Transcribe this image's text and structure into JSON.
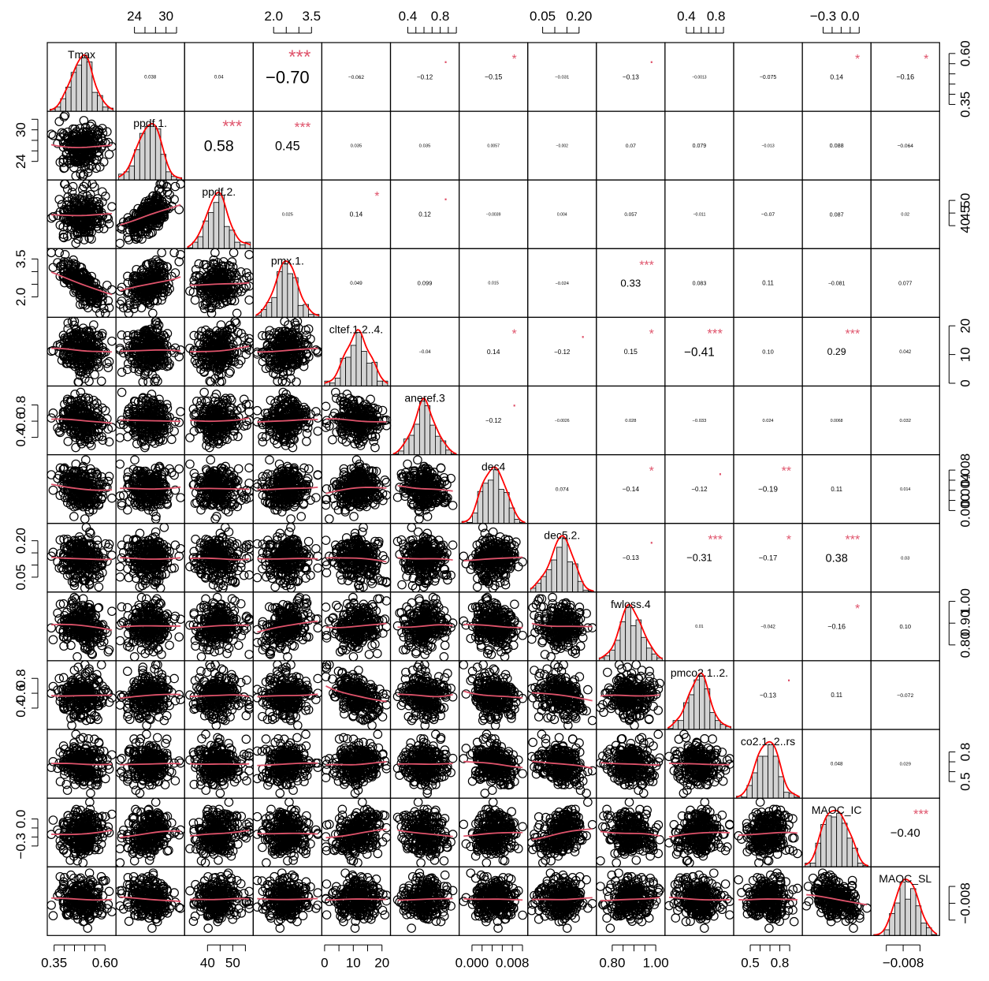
{
  "chart_data": {
    "type": "scatter-matrix",
    "title": "",
    "variables": [
      "Tmax",
      "ppdf.1.",
      "ppdf.2.",
      "pmx.1.",
      "cltef.1.2..4.",
      "aneref.3",
      "dec4",
      "dec5.2.",
      "fwloss.4",
      "pmco2.1..2.",
      "co2.1..2..rs",
      "MAOC_IC",
      "MAOC_SL"
    ],
    "diagonal_labels": [
      "Tmax",
      "ppdf.1.",
      "ppdf.2.",
      "pmx.1.",
      "cltef.1.2..4.",
      "aneref.3",
      "dec4",
      "dec5.2.",
      "fwloss.4",
      "pmco2.1..2.",
      "co2.1..2..rs",
      "MAOC_IC",
      "MAOC_SL"
    ],
    "ranges": [
      [
        0.33,
        0.64
      ],
      [
        21,
        33
      ],
      [
        32,
        57
      ],
      [
        1.3,
        3.8
      ],
      [
        0,
        22
      ],
      [
        0.22,
        1.0
      ],
      [
        -0.002,
        0.0105
      ],
      [
        0.0,
        0.26
      ],
      [
        0.74,
        1.03
      ],
      [
        0.15,
        1.0
      ],
      [
        0.36,
        1.0
      ],
      [
        -0.5,
        0.2
      ],
      [
        -0.0115,
        -0.004
      ]
    ],
    "top_axis": [
      {
        "col": 1,
        "ticks": [
          24,
          26,
          28,
          30,
          32
        ],
        "labels": [
          "24",
          "",
          "",
          "30",
          ""
        ]
      },
      {
        "col": 3,
        "ticks": [
          2.0,
          2.5,
          3.0,
          3.5
        ],
        "labels": [
          "2.0",
          "",
          "",
          "3.5"
        ]
      },
      {
        "col": 5,
        "ticks": [
          0.4,
          0.5,
          0.6,
          0.7,
          0.8,
          0.9,
          1.0
        ],
        "labels": [
          "0.4",
          "",
          "",
          "",
          "0.8",
          "",
          ""
        ]
      },
      {
        "col": 7,
        "ticks": [
          0.05,
          0.1,
          0.15,
          0.2
        ],
        "labels": [
          "0.05",
          "",
          "",
          "0.20"
        ]
      },
      {
        "col": 9,
        "ticks": [
          0.4,
          0.5,
          0.6,
          0.7,
          0.8,
          0.9
        ],
        "labels": [
          "0.4",
          "",
          "",
          "",
          "0.8",
          ""
        ]
      },
      {
        "col": 11,
        "ticks": [
          -0.3,
          -0.2,
          -0.1,
          0.0,
          0.1
        ],
        "labels": [
          "−0.3",
          "",
          "",
          "0.0",
          ""
        ]
      }
    ],
    "bottom_axis": [
      {
        "col": 0,
        "ticks": [
          0.35,
          0.4,
          0.45,
          0.5,
          0.55,
          0.6
        ],
        "labels": [
          "0.35",
          "",
          "",
          "",
          "",
          "0.60"
        ]
      },
      {
        "col": 2,
        "ticks": [
          40,
          45,
          50,
          55
        ],
        "labels": [
          "40",
          "",
          "50",
          ""
        ]
      },
      {
        "col": 4,
        "ticks": [
          0,
          5,
          10,
          15,
          20
        ],
        "labels": [
          "0",
          "",
          "10",
          "",
          "20"
        ]
      },
      {
        "col": 6,
        "ticks": [
          0.0,
          0.002,
          0.004,
          0.006,
          0.008,
          0.01
        ],
        "labels": [
          "0.000",
          "",
          "",
          "",
          "0.008",
          ""
        ]
      },
      {
        "col": 8,
        "ticks": [
          0.8,
          0.85,
          0.9,
          0.95,
          1.0
        ],
        "labels": [
          "0.80",
          "",
          "",
          "",
          "1.00"
        ]
      },
      {
        "col": 10,
        "ticks": [
          0.5,
          0.6,
          0.7,
          0.8,
          0.9
        ],
        "labels": [
          "0.5",
          "",
          "",
          "0.8",
          ""
        ]
      },
      {
        "col": 12,
        "ticks": [
          -0.01,
          -0.008,
          -0.006
        ],
        "labels": [
          "",
          "−0.008",
          ""
        ]
      }
    ],
    "left_axis": [
      {
        "row": 1,
        "ticks": [
          24,
          26,
          28,
          30,
          32
        ],
        "labels": [
          "24",
          "",
          "",
          "30",
          ""
        ]
      },
      {
        "row": 3,
        "ticks": [
          2.0,
          2.5,
          3.0,
          3.5
        ],
        "labels": [
          "2.0",
          "",
          "",
          "3.5"
        ]
      },
      {
        "row": 5,
        "ticks": [
          0.4,
          0.6,
          0.8
        ],
        "labels": [
          "0.4",
          "0.6",
          "0.8"
        ]
      },
      {
        "row": 7,
        "ticks": [
          0.05,
          0.1,
          0.15,
          0.2
        ],
        "labels": [
          "0.05",
          "",
          "",
          "0.20"
        ]
      },
      {
        "row": 9,
        "ticks": [
          0.4,
          0.6,
          0.8
        ],
        "labels": [
          "0.4",
          "0.6",
          "0.8"
        ]
      },
      {
        "row": 11,
        "ticks": [
          -0.3,
          -0.2,
          -0.1,
          0.0
        ],
        "labels": [
          "−0.3",
          "",
          "",
          "0.0"
        ]
      }
    ],
    "right_axis": [
      {
        "row": 0,
        "ticks": [
          0.35,
          0.4,
          0.45,
          0.5,
          0.55,
          0.6
        ],
        "labels": [
          "0.35",
          "",
          "",
          "",
          "",
          "0.60"
        ]
      },
      {
        "row": 2,
        "ticks": [
          40,
          45,
          50
        ],
        "labels": [
          "40",
          "45",
          "50"
        ]
      },
      {
        "row": 4,
        "ticks": [
          0,
          10,
          20
        ],
        "labels": [
          "0",
          "10",
          "20"
        ]
      },
      {
        "row": 6,
        "ticks": [
          0.0,
          0.002,
          0.004,
          0.006,
          0.008
        ],
        "labels": [
          "0.000",
          "",
          "0.004",
          "",
          "0.008"
        ]
      },
      {
        "row": 8,
        "ticks": [
          0.8,
          0.9,
          1.0
        ],
        "labels": [
          "0.80",
          "0.90",
          "1.00"
        ]
      },
      {
        "row": 10,
        "ticks": [
          0.5,
          0.6,
          0.7,
          0.8
        ],
        "labels": [
          "0.5",
          "",
          "",
          "0.8"
        ]
      },
      {
        "row": 12,
        "ticks": [
          -0.01,
          -0.008,
          -0.006
        ],
        "labels": [
          "",
          "−0.008",
          ""
        ]
      }
    ],
    "correlations": [
      {
        "i": 0,
        "j": 1,
        "r": "0.038",
        "stars": ""
      },
      {
        "i": 0,
        "j": 2,
        "r": "0.04",
        "stars": ""
      },
      {
        "i": 0,
        "j": 3,
        "r": "−0.70",
        "stars": "***"
      },
      {
        "i": 0,
        "j": 4,
        "r": "−0.062",
        "stars": ""
      },
      {
        "i": 0,
        "j": 5,
        "r": "−0.12",
        "stars": "."
      },
      {
        "i": 0,
        "j": 6,
        "r": "−0.15",
        "stars": "*"
      },
      {
        "i": 0,
        "j": 7,
        "r": "−0.031",
        "stars": ""
      },
      {
        "i": 0,
        "j": 8,
        "r": "−0.13",
        "stars": "."
      },
      {
        "i": 0,
        "j": 9,
        "r": "−0.0013",
        "stars": ""
      },
      {
        "i": 0,
        "j": 10,
        "r": "−0.075",
        "stars": ""
      },
      {
        "i": 0,
        "j": 11,
        "r": "0.14",
        "stars": "*"
      },
      {
        "i": 0,
        "j": 12,
        "r": "−0.16",
        "stars": "*"
      },
      {
        "i": 1,
        "j": 2,
        "r": "0.58",
        "stars": "***"
      },
      {
        "i": 1,
        "j": 3,
        "r": "0.45",
        "stars": "***"
      },
      {
        "i": 1,
        "j": 4,
        "r": "0.035",
        "stars": ""
      },
      {
        "i": 1,
        "j": 5,
        "r": "0.035",
        "stars": ""
      },
      {
        "i": 1,
        "j": 6,
        "r": "0.0057",
        "stars": ""
      },
      {
        "i": 1,
        "j": 7,
        "r": "−0.002",
        "stars": ""
      },
      {
        "i": 1,
        "j": 8,
        "r": "0.07",
        "stars": ""
      },
      {
        "i": 1,
        "j": 9,
        "r": "0.079",
        "stars": ""
      },
      {
        "i": 1,
        "j": 10,
        "r": "−0.013",
        "stars": ""
      },
      {
        "i": 1,
        "j": 11,
        "r": "0.088",
        "stars": ""
      },
      {
        "i": 1,
        "j": 12,
        "r": "−0.064",
        "stars": ""
      },
      {
        "i": 2,
        "j": 3,
        "r": "0.025",
        "stars": ""
      },
      {
        "i": 2,
        "j": 4,
        "r": "0.14",
        "stars": "*"
      },
      {
        "i": 2,
        "j": 5,
        "r": "0.12",
        "stars": "."
      },
      {
        "i": 2,
        "j": 6,
        "r": "−0.0039",
        "stars": ""
      },
      {
        "i": 2,
        "j": 7,
        "r": "0.004",
        "stars": ""
      },
      {
        "i": 2,
        "j": 8,
        "r": "0.057",
        "stars": ""
      },
      {
        "i": 2,
        "j": 9,
        "r": "−0.011",
        "stars": ""
      },
      {
        "i": 2,
        "j": 10,
        "r": "−0.07",
        "stars": ""
      },
      {
        "i": 2,
        "j": 11,
        "r": "0.087",
        "stars": ""
      },
      {
        "i": 2,
        "j": 12,
        "r": "0.02",
        "stars": ""
      },
      {
        "i": 3,
        "j": 4,
        "r": "0.049",
        "stars": ""
      },
      {
        "i": 3,
        "j": 5,
        "r": "0.099",
        "stars": ""
      },
      {
        "i": 3,
        "j": 6,
        "r": "0.015",
        "stars": ""
      },
      {
        "i": 3,
        "j": 7,
        "r": "−0.024",
        "stars": ""
      },
      {
        "i": 3,
        "j": 8,
        "r": "0.33",
        "stars": "***"
      },
      {
        "i": 3,
        "j": 9,
        "r": "0.083",
        "stars": ""
      },
      {
        "i": 3,
        "j": 10,
        "r": "0.11",
        "stars": ""
      },
      {
        "i": 3,
        "j": 11,
        "r": "−0.081",
        "stars": ""
      },
      {
        "i": 3,
        "j": 12,
        "r": "0.077",
        "stars": ""
      },
      {
        "i": 4,
        "j": 5,
        "r": "−0.04",
        "stars": ""
      },
      {
        "i": 4,
        "j": 6,
        "r": "0.14",
        "stars": "*"
      },
      {
        "i": 4,
        "j": 7,
        "r": "−0.12",
        "stars": "."
      },
      {
        "i": 4,
        "j": 8,
        "r": "0.15",
        "stars": "*"
      },
      {
        "i": 4,
        "j": 9,
        "r": "−0.41",
        "stars": "***"
      },
      {
        "i": 4,
        "j": 10,
        "r": "0.10",
        "stars": ""
      },
      {
        "i": 4,
        "j": 11,
        "r": "0.29",
        "stars": "***"
      },
      {
        "i": 4,
        "j": 12,
        "r": "0.042",
        "stars": ""
      },
      {
        "i": 5,
        "j": 6,
        "r": "−0.12",
        "stars": "."
      },
      {
        "i": 5,
        "j": 7,
        "r": "−0.0026",
        "stars": ""
      },
      {
        "i": 5,
        "j": 8,
        "r": "0.028",
        "stars": ""
      },
      {
        "i": 5,
        "j": 9,
        "r": "−0.033",
        "stars": ""
      },
      {
        "i": 5,
        "j": 10,
        "r": "0.024",
        "stars": ""
      },
      {
        "i": 5,
        "j": 11,
        "r": "0.0068",
        "stars": ""
      },
      {
        "i": 5,
        "j": 12,
        "r": "0.032",
        "stars": ""
      },
      {
        "i": 6,
        "j": 7,
        "r": "0.074",
        "stars": ""
      },
      {
        "i": 6,
        "j": 8,
        "r": "−0.14",
        "stars": "*"
      },
      {
        "i": 6,
        "j": 9,
        "r": "−0.12",
        "stars": "."
      },
      {
        "i": 6,
        "j": 10,
        "r": "−0.19",
        "stars": "**"
      },
      {
        "i": 6,
        "j": 11,
        "r": "0.11",
        "stars": ""
      },
      {
        "i": 6,
        "j": 12,
        "r": "0.014",
        "stars": ""
      },
      {
        "i": 7,
        "j": 8,
        "r": "−0.13",
        "stars": "."
      },
      {
        "i": 7,
        "j": 9,
        "r": "−0.31",
        "stars": "***"
      },
      {
        "i": 7,
        "j": 10,
        "r": "−0.17",
        "stars": "*"
      },
      {
        "i": 7,
        "j": 11,
        "r": "0.38",
        "stars": "***"
      },
      {
        "i": 7,
        "j": 12,
        "r": "0.03",
        "stars": ""
      },
      {
        "i": 8,
        "j": 9,
        "r": "0.01",
        "stars": ""
      },
      {
        "i": 8,
        "j": 10,
        "r": "−0.042",
        "stars": ""
      },
      {
        "i": 8,
        "j": 11,
        "r": "−0.16",
        "stars": "*"
      },
      {
        "i": 8,
        "j": 12,
        "r": "0.10",
        "stars": ""
      },
      {
        "i": 9,
        "j": 10,
        "r": "−0.13",
        "stars": "."
      },
      {
        "i": 9,
        "j": 11,
        "r": "0.11",
        "stars": ""
      },
      {
        "i": 9,
        "j": 12,
        "r": "−0.072",
        "stars": ""
      },
      {
        "i": 10,
        "j": 11,
        "r": "0.048",
        "stars": ""
      },
      {
        "i": 10,
        "j": 12,
        "r": "0.029",
        "stars": ""
      },
      {
        "i": 11,
        "j": 12,
        "r": "−0.40",
        "stars": "***"
      }
    ],
    "colors": {
      "points": "#000000",
      "smooth_line": "#DF536B",
      "density_line": "#FF0000",
      "histogram_fill": "#D3D3D3",
      "stars": "#DF536B",
      "border": "#000000"
    },
    "n_points": 260,
    "grid": false
  }
}
